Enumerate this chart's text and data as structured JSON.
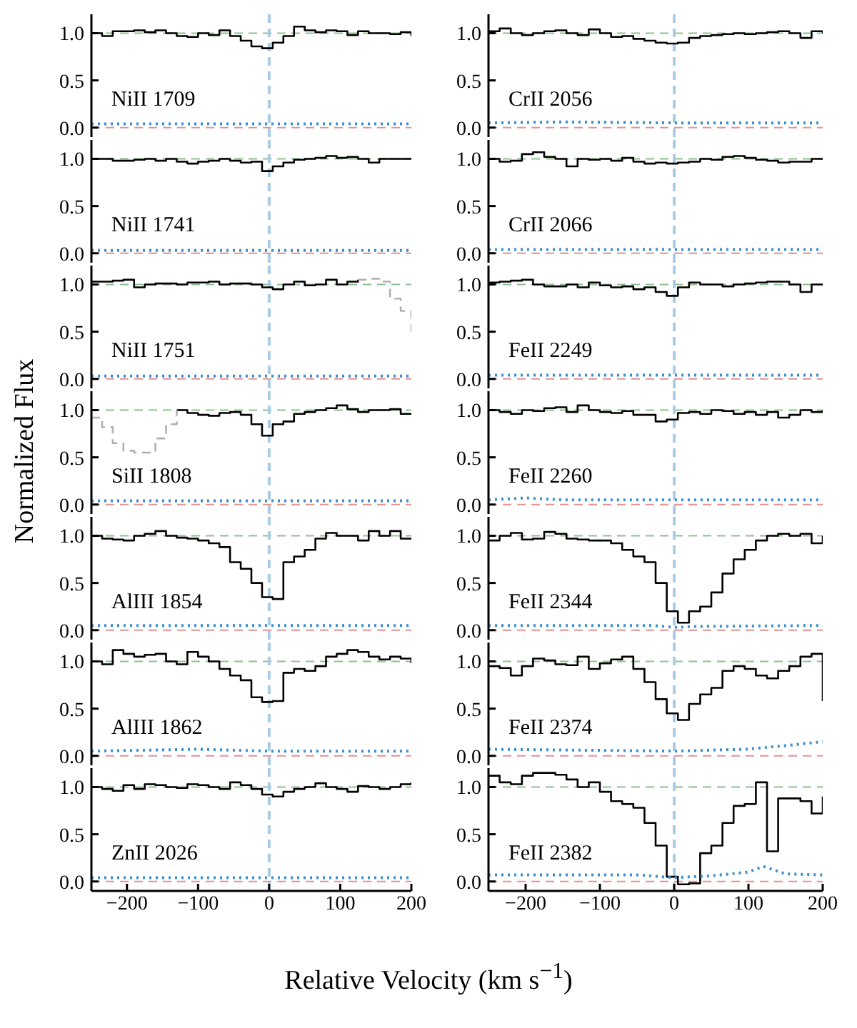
{
  "chart_data": [
    {
      "type": "step",
      "annotations": [
        "NiII 1709"
      ],
      "x": [
        -250,
        -235,
        -220,
        -205,
        -190,
        -175,
        -160,
        -145,
        -130,
        -115,
        -100,
        -85,
        -70,
        -55,
        -40,
        -25,
        -10,
        5,
        20,
        35,
        50,
        65,
        80,
        95,
        110,
        125,
        140,
        155,
        170,
        185,
        200
      ],
      "series": [
        {
          "color": "#000000",
          "values": [
            1.0,
            0.97,
            1.02,
            1.02,
            1.03,
            1.01,
            1.03,
            1.0,
            0.97,
            0.96,
            1.0,
            0.98,
            1.03,
            0.97,
            0.92,
            0.86,
            0.84,
            0.9,
            0.97,
            1.07,
            1.03,
            1.01,
            1.03,
            1.02,
            0.98,
            1.02,
            1.0,
            1.0,
            0.99,
            1.01,
            0.97
          ]
        },
        {
          "type": "line",
          "line_style": "dotted",
          "color": "#3a8fd0",
          "x": [
            -250,
            200
          ],
          "values": [
            0.04,
            0.04
          ]
        }
      ],
      "xlim": [
        -250,
        200
      ],
      "ylim": [
        -0.1,
        1.2
      ],
      "xticks": [
        -200,
        -100,
        0,
        100,
        200
      ],
      "yticks": [
        {
          "value": 0,
          "label": "0.0"
        },
        {
          "value": 0.5,
          "label": "0.5"
        },
        {
          "value": 1,
          "label": "1.0"
        }
      ],
      "tick_labels": "y",
      "ref_lines": [
        {
          "axis": "y",
          "value": 1,
          "color": "#8fc08f",
          "line_style": "dashed"
        },
        {
          "axis": "y",
          "value": 0,
          "color": "#e89090",
          "line_style": "dashed"
        },
        {
          "axis": "x",
          "value": 0,
          "color": "#a9cce6",
          "line_style": "dashed"
        }
      ]
    },
    {
      "type": "step",
      "annotations": [
        "NiII 1741"
      ],
      "x": [
        -250,
        -235,
        -220,
        -205,
        -190,
        -175,
        -160,
        -145,
        -130,
        -115,
        -100,
        -85,
        -70,
        -55,
        -40,
        -25,
        -10,
        5,
        20,
        35,
        50,
        65,
        80,
        95,
        110,
        125,
        140,
        155,
        170,
        185,
        200
      ],
      "series": [
        {
          "color": "#000000",
          "values": [
            1.0,
            1.0,
            0.98,
            0.98,
            0.99,
            1.0,
            0.98,
            1.0,
            0.97,
            0.95,
            0.97,
            0.98,
            1.0,
            0.98,
            0.96,
            0.97,
            0.87,
            0.92,
            0.96,
            0.99,
            1.0,
            1.01,
            1.03,
            1.01,
            1.02,
            1.0,
            0.96,
            1.0,
            1.0,
            1.0,
            0.99
          ]
        },
        {
          "type": "line",
          "line_style": "dotted",
          "color": "#3a8fd0",
          "x": [
            -250,
            200
          ],
          "values": [
            0.03,
            0.03
          ]
        }
      ],
      "xlim": [
        -250,
        200
      ],
      "ylim": [
        -0.1,
        1.2
      ],
      "xticks": [
        -200,
        -100,
        0,
        100,
        200
      ],
      "yticks": [
        {
          "value": 0,
          "label": "0.0"
        },
        {
          "value": 0.5,
          "label": "0.5"
        },
        {
          "value": 1,
          "label": "1.0"
        }
      ],
      "tick_labels": "y",
      "ref_lines": [
        {
          "axis": "y",
          "value": 1,
          "color": "#8fc08f",
          "line_style": "dashed"
        },
        {
          "axis": "y",
          "value": 0,
          "color": "#e89090",
          "line_style": "dashed"
        },
        {
          "axis": "x",
          "value": 0,
          "color": "#a9cce6",
          "line_style": "dashed"
        }
      ]
    },
    {
      "type": "step",
      "annotations": [
        "NiII 1751"
      ],
      "x": [
        -250,
        -235,
        -220,
        -205,
        -190,
        -175,
        -160,
        -145,
        -130,
        -115,
        -100,
        -85,
        -70,
        -55,
        -40,
        -25,
        -10,
        5,
        20,
        35,
        50,
        65,
        80,
        95,
        110,
        125,
        140,
        155,
        170,
        185,
        200
      ],
      "series": [
        {
          "color": "#000000",
          "values": [
            1.03,
            1.03,
            1.04,
            1.05,
            0.97,
            1.0,
            1.01,
            1.01,
            1.0,
            1.02,
            1.02,
            1.03,
            1.0,
            1.01,
            1.01,
            1.0,
            0.97,
            0.95,
            1.0,
            1.03,
            0.99,
            1.0,
            1.05,
            1.0,
            1.03,
            1.05,
            null,
            null,
            null,
            null,
            null
          ]
        },
        {
          "color": "#b0b0b0",
          "line_style": "dashed",
          "values": [
            null,
            null,
            null,
            null,
            null,
            null,
            null,
            null,
            null,
            null,
            null,
            null,
            null,
            null,
            null,
            null,
            null,
            null,
            null,
            null,
            null,
            null,
            null,
            null,
            null,
            1.05,
            1.06,
            1.03,
            0.85,
            0.72,
            0.5
          ]
        },
        {
          "type": "line",
          "line_style": "dotted",
          "color": "#3a8fd0",
          "x": [
            -250,
            200
          ],
          "values": [
            0.03,
            0.03
          ]
        }
      ],
      "xlim": [
        -250,
        200
      ],
      "ylim": [
        -0.1,
        1.2
      ],
      "xticks": [
        -200,
        -100,
        0,
        100,
        200
      ],
      "yticks": [
        {
          "value": 0,
          "label": "0.0"
        },
        {
          "value": 0.5,
          "label": "0.5"
        },
        {
          "value": 1,
          "label": "1.0"
        }
      ],
      "tick_labels": "y",
      "ref_lines": [
        {
          "axis": "y",
          "value": 1,
          "color": "#8fc08f",
          "line_style": "dashed"
        },
        {
          "axis": "y",
          "value": 0,
          "color": "#e89090",
          "line_style": "dashed"
        },
        {
          "axis": "x",
          "value": 0,
          "color": "#a9cce6",
          "line_style": "dashed"
        }
      ]
    },
    {
      "type": "step",
      "ylabel": "Normalized Flux",
      "annotations": [
        "SiII 1808"
      ],
      "x": [
        -250,
        -235,
        -220,
        -205,
        -190,
        -175,
        -160,
        -145,
        -130,
        -115,
        -100,
        -85,
        -70,
        -55,
        -40,
        -25,
        -10,
        5,
        20,
        35,
        50,
        65,
        80,
        95,
        110,
        125,
        140,
        155,
        170,
        185,
        200
      ],
      "series": [
        {
          "color": "#000000",
          "values": [
            null,
            null,
            null,
            null,
            null,
            null,
            null,
            null,
            1.0,
            0.97,
            0.95,
            0.94,
            0.97,
            0.98,
            0.95,
            0.85,
            0.73,
            0.85,
            0.88,
            0.96,
            0.98,
            1.0,
            1.02,
            1.05,
            1.01,
            0.98,
            1.0,
            1.0,
            1.01,
            0.96,
            0.95
          ]
        },
        {
          "color": "#b0b0b0",
          "line_style": "dashed",
          "values": [
            0.92,
            0.82,
            0.65,
            0.57,
            0.55,
            0.55,
            0.7,
            0.85,
            1.0,
            null,
            null,
            null,
            null,
            null,
            null,
            null,
            null,
            null,
            null,
            null,
            null,
            null,
            null,
            null,
            null,
            null,
            null,
            null,
            null,
            null,
            null
          ]
        },
        {
          "type": "line",
          "line_style": "dotted",
          "color": "#3a8fd0",
          "x": [
            -250,
            200
          ],
          "values": [
            0.04,
            0.04
          ]
        }
      ],
      "xlim": [
        -250,
        200
      ],
      "ylim": [
        -0.1,
        1.2
      ],
      "xticks": [
        -200,
        -100,
        0,
        100,
        200
      ],
      "yticks": [
        {
          "value": 0,
          "label": "0.0"
        },
        {
          "value": 0.5,
          "label": "0.5"
        },
        {
          "value": 1,
          "label": "1.0"
        }
      ],
      "tick_labels": "y",
      "ref_lines": [
        {
          "axis": "y",
          "value": 1,
          "color": "#8fc08f",
          "line_style": "dashed"
        },
        {
          "axis": "y",
          "value": 0,
          "color": "#e89090",
          "line_style": "dashed"
        },
        {
          "axis": "x",
          "value": 0,
          "color": "#a9cce6",
          "line_style": "dashed"
        }
      ]
    },
    {
      "type": "step",
      "annotations": [
        "AlIII 1854"
      ],
      "x": [
        -250,
        -235,
        -220,
        -205,
        -190,
        -175,
        -160,
        -145,
        -130,
        -115,
        -100,
        -85,
        -70,
        -55,
        -40,
        -25,
        -10,
        5,
        20,
        35,
        50,
        65,
        80,
        95,
        110,
        125,
        140,
        155,
        170,
        185,
        200
      ],
      "series": [
        {
          "color": "#000000",
          "values": [
            1.0,
            0.97,
            0.96,
            0.95,
            1.0,
            1.02,
            1.05,
            1.0,
            0.98,
            0.97,
            0.95,
            0.92,
            0.88,
            0.72,
            0.65,
            0.5,
            0.35,
            0.33,
            0.72,
            0.78,
            0.85,
            0.97,
            1.03,
            1.0,
            1.0,
            0.95,
            1.05,
            1.0,
            1.05,
            0.97,
            0.98
          ]
        },
        {
          "type": "line",
          "line_style": "dotted",
          "color": "#3a8fd0",
          "x": [
            -250,
            200
          ],
          "values": [
            0.05,
            0.05
          ]
        }
      ],
      "xlim": [
        -250,
        200
      ],
      "ylim": [
        -0.1,
        1.2
      ],
      "xticks": [
        -200,
        -100,
        0,
        100,
        200
      ],
      "yticks": [
        {
          "value": 0,
          "label": "0.0"
        },
        {
          "value": 0.5,
          "label": "0.5"
        },
        {
          "value": 1,
          "label": "1.0"
        }
      ],
      "tick_labels": "y",
      "ref_lines": [
        {
          "axis": "y",
          "value": 1,
          "color": "#8fc08f",
          "line_style": "dashed"
        },
        {
          "axis": "y",
          "value": 0,
          "color": "#e89090",
          "line_style": "dashed"
        },
        {
          "axis": "x",
          "value": 0,
          "color": "#a9cce6",
          "line_style": "dashed"
        }
      ]
    },
    {
      "type": "step",
      "annotations": [
        "AlIII 1862"
      ],
      "x": [
        -250,
        -235,
        -220,
        -205,
        -190,
        -175,
        -160,
        -145,
        -130,
        -115,
        -100,
        -85,
        -70,
        -55,
        -40,
        -25,
        -10,
        5,
        20,
        35,
        50,
        65,
        80,
        95,
        110,
        125,
        140,
        155,
        170,
        185,
        200
      ],
      "series": [
        {
          "color": "#000000",
          "values": [
            1.0,
            0.97,
            1.12,
            1.08,
            1.05,
            1.07,
            1.08,
            1.0,
            0.97,
            1.1,
            1.05,
            1.0,
            0.92,
            0.85,
            0.8,
            0.62,
            0.57,
            0.58,
            0.88,
            0.92,
            0.9,
            0.95,
            1.05,
            1.08,
            1.12,
            1.1,
            1.05,
            1.02,
            1.05,
            1.03,
            0.98
          ]
        },
        {
          "type": "line",
          "line_style": "dotted",
          "color": "#3a8fd0",
          "x": [
            -250,
            -100,
            0,
            200
          ],
          "values": [
            0.05,
            0.07,
            0.05,
            0.05
          ]
        }
      ],
      "xlim": [
        -250,
        200
      ],
      "ylim": [
        -0.1,
        1.2
      ],
      "xticks": [
        -200,
        -100,
        0,
        100,
        200
      ],
      "yticks": [
        {
          "value": 0,
          "label": "0.0"
        },
        {
          "value": 0.5,
          "label": "0.5"
        },
        {
          "value": 1,
          "label": "1.0"
        }
      ],
      "tick_labels": "y",
      "ref_lines": [
        {
          "axis": "y",
          "value": 1,
          "color": "#8fc08f",
          "line_style": "dashed"
        },
        {
          "axis": "y",
          "value": 0,
          "color": "#e89090",
          "line_style": "dashed"
        },
        {
          "axis": "x",
          "value": 0,
          "color": "#a9cce6",
          "line_style": "dashed"
        }
      ]
    },
    {
      "type": "step",
      "annotations": [
        "ZnII 2026"
      ],
      "x": [
        -250,
        -235,
        -220,
        -205,
        -190,
        -175,
        -160,
        -145,
        -130,
        -115,
        -100,
        -85,
        -70,
        -55,
        -40,
        -25,
        -10,
        5,
        20,
        35,
        50,
        65,
        80,
        95,
        110,
        125,
        140,
        155,
        170,
        185,
        200
      ],
      "series": [
        {
          "color": "#000000",
          "values": [
            1.0,
            0.98,
            0.96,
            1.02,
            0.98,
            1.03,
            1.02,
            1.0,
            0.99,
            1.03,
            1.02,
            1.0,
            0.98,
            1.05,
            1.02,
            0.98,
            0.92,
            0.9,
            0.95,
            0.98,
            1.0,
            1.04,
            1.0,
            0.98,
            0.95,
            1.01,
            1.0,
            0.98,
            1.0,
            1.03,
            1.05
          ]
        },
        {
          "type": "line",
          "line_style": "dotted",
          "color": "#3a8fd0",
          "x": [
            -250,
            200
          ],
          "values": [
            0.04,
            0.04
          ]
        }
      ],
      "xlim": [
        -250,
        200
      ],
      "ylim": [
        -0.1,
        1.2
      ],
      "xticks": [
        -200,
        -100,
        0,
        100,
        200
      ],
      "yticks": [
        {
          "value": 0,
          "label": "0.0"
        },
        {
          "value": 0.5,
          "label": "0.5"
        },
        {
          "value": 1,
          "label": "1.0"
        }
      ],
      "ref_lines": [
        {
          "axis": "y",
          "value": 1,
          "color": "#8fc08f",
          "line_style": "dashed"
        },
        {
          "axis": "y",
          "value": 0,
          "color": "#e89090",
          "line_style": "dashed"
        },
        {
          "axis": "x",
          "value": 0,
          "color": "#a9cce6",
          "line_style": "dashed"
        }
      ]
    },
    {
      "type": "step",
      "annotations": [
        "CrII 2056"
      ],
      "x": [
        -250,
        -235,
        -220,
        -205,
        -190,
        -175,
        -160,
        -145,
        -130,
        -115,
        -100,
        -85,
        -70,
        -55,
        -40,
        -25,
        -10,
        5,
        20,
        35,
        50,
        65,
        80,
        95,
        110,
        125,
        140,
        155,
        170,
        185,
        200
      ],
      "series": [
        {
          "color": "#000000",
          "values": [
            1.02,
            1.05,
            1.0,
            0.98,
            1.0,
            1.02,
            1.03,
            1.0,
            0.98,
            1.04,
            1.0,
            0.96,
            0.97,
            0.94,
            0.92,
            0.9,
            0.89,
            0.9,
            0.95,
            0.97,
            0.98,
            0.99,
            1.0,
            0.99,
            1.0,
            1.01,
            1.02,
            1.0,
            0.95,
            1.02,
            1.0
          ]
        },
        {
          "type": "line",
          "line_style": "dotted",
          "color": "#3a8fd0",
          "x": [
            -250,
            -150,
            0,
            200
          ],
          "values": [
            0.05,
            0.06,
            0.05,
            0.05
          ]
        }
      ],
      "xlim": [
        -250,
        200
      ],
      "ylim": [
        -0.1,
        1.2
      ],
      "xticks": [
        -200,
        -100,
        0,
        100,
        200
      ],
      "yticks": [
        {
          "value": 0,
          "label": "0.0"
        },
        {
          "value": 0.5,
          "label": "0.5"
        },
        {
          "value": 1,
          "label": "1.0"
        }
      ],
      "tick_labels": "y",
      "ref_lines": [
        {
          "axis": "y",
          "value": 1,
          "color": "#8fc08f",
          "line_style": "dashed"
        },
        {
          "axis": "y",
          "value": 0,
          "color": "#e89090",
          "line_style": "dashed"
        },
        {
          "axis": "x",
          "value": 0,
          "color": "#a9cce6",
          "line_style": "dashed"
        }
      ]
    },
    {
      "type": "step",
      "annotations": [
        "CrII 2066"
      ],
      "x": [
        -250,
        -235,
        -220,
        -205,
        -190,
        -175,
        -160,
        -145,
        -130,
        -115,
        -100,
        -85,
        -70,
        -55,
        -40,
        -25,
        -10,
        5,
        20,
        35,
        50,
        65,
        80,
        95,
        110,
        125,
        140,
        155,
        170,
        185,
        200
      ],
      "series": [
        {
          "color": "#000000",
          "values": [
            1.0,
            0.97,
            0.98,
            1.05,
            1.07,
            1.02,
            1.0,
            0.92,
            1.0,
            0.99,
            1.0,
            0.98,
            1.01,
            0.97,
            0.95,
            0.96,
            0.95,
            0.96,
            0.97,
            1.0,
            0.99,
            1.02,
            1.03,
            1.01,
            0.99,
            0.98,
            0.96,
            0.97,
            0.97,
            1.0,
            1.0
          ]
        },
        {
          "type": "line",
          "line_style": "dotted",
          "color": "#3a8fd0",
          "x": [
            -250,
            200
          ],
          "values": [
            0.04,
            0.04
          ]
        }
      ],
      "xlim": [
        -250,
        200
      ],
      "ylim": [
        -0.1,
        1.2
      ],
      "xticks": [
        -200,
        -100,
        0,
        100,
        200
      ],
      "yticks": [
        {
          "value": 0,
          "label": "0.0"
        },
        {
          "value": 0.5,
          "label": "0.5"
        },
        {
          "value": 1,
          "label": "1.0"
        }
      ],
      "tick_labels": "y",
      "ref_lines": [
        {
          "axis": "y",
          "value": 1,
          "color": "#8fc08f",
          "line_style": "dashed"
        },
        {
          "axis": "y",
          "value": 0,
          "color": "#e89090",
          "line_style": "dashed"
        },
        {
          "axis": "x",
          "value": 0,
          "color": "#a9cce6",
          "line_style": "dashed"
        }
      ]
    },
    {
      "type": "step",
      "annotations": [
        "FeII 2249"
      ],
      "x": [
        -250,
        -235,
        -220,
        -205,
        -190,
        -175,
        -160,
        -145,
        -130,
        -115,
        -100,
        -85,
        -70,
        -55,
        -40,
        -25,
        -10,
        5,
        20,
        35,
        50,
        65,
        80,
        95,
        110,
        125,
        140,
        155,
        170,
        185,
        200
      ],
      "series": [
        {
          "color": "#000000",
          "values": [
            1.02,
            1.03,
            1.04,
            1.05,
            1.0,
            0.98,
            0.98,
            1.0,
            0.97,
            1.02,
            0.99,
            0.97,
            0.98,
            0.95,
            0.97,
            0.92,
            0.88,
            0.97,
            1.02,
            1.0,
            1.0,
            0.98,
            1.0,
            1.01,
            1.02,
            1.03,
            1.03,
            1.0,
            0.92,
            1.0,
            1.0
          ]
        },
        {
          "type": "line",
          "line_style": "dotted",
          "color": "#3a8fd0",
          "x": [
            -250,
            200
          ],
          "values": [
            0.04,
            0.04
          ]
        }
      ],
      "xlim": [
        -250,
        200
      ],
      "ylim": [
        -0.1,
        1.2
      ],
      "xticks": [
        -200,
        -100,
        0,
        100,
        200
      ],
      "yticks": [
        {
          "value": 0,
          "label": "0.0"
        },
        {
          "value": 0.5,
          "label": "0.5"
        },
        {
          "value": 1,
          "label": "1.0"
        }
      ],
      "tick_labels": "y",
      "ref_lines": [
        {
          "axis": "y",
          "value": 1,
          "color": "#8fc08f",
          "line_style": "dashed"
        },
        {
          "axis": "y",
          "value": 0,
          "color": "#e89090",
          "line_style": "dashed"
        },
        {
          "axis": "x",
          "value": 0,
          "color": "#a9cce6",
          "line_style": "dashed"
        }
      ]
    },
    {
      "type": "step",
      "annotations": [
        "FeII 2260"
      ],
      "x": [
        -250,
        -235,
        -220,
        -205,
        -190,
        -175,
        -160,
        -145,
        -130,
        -115,
        -100,
        -85,
        -70,
        -55,
        -40,
        -25,
        -10,
        5,
        20,
        35,
        50,
        65,
        80,
        95,
        110,
        125,
        140,
        155,
        170,
        185,
        200
      ],
      "series": [
        {
          "color": "#000000",
          "values": [
            1.0,
            0.98,
            0.96,
            1.0,
            0.99,
            1.02,
            1.03,
            0.98,
            1.05,
            1.0,
            0.98,
            0.97,
            0.99,
            0.95,
            0.95,
            0.88,
            0.9,
            0.97,
            0.98,
            0.96,
            1.0,
            0.99,
            0.96,
            0.98,
            0.95,
            0.98,
            0.92,
            0.95,
            1.0,
            0.98,
            1.0
          ]
        },
        {
          "type": "line",
          "line_style": "dotted",
          "color": "#3a8fd0",
          "x": [
            -250,
            -200,
            -150,
            200
          ],
          "values": [
            0.05,
            0.07,
            0.05,
            0.05
          ]
        }
      ],
      "xlim": [
        -250,
        200
      ],
      "ylim": [
        -0.1,
        1.2
      ],
      "xticks": [
        -200,
        -100,
        0,
        100,
        200
      ],
      "yticks": [
        {
          "value": 0,
          "label": "0.0"
        },
        {
          "value": 0.5,
          "label": "0.5"
        },
        {
          "value": 1,
          "label": "1.0"
        }
      ],
      "tick_labels": "y",
      "ref_lines": [
        {
          "axis": "y",
          "value": 1,
          "color": "#8fc08f",
          "line_style": "dashed"
        },
        {
          "axis": "y",
          "value": 0,
          "color": "#e89090",
          "line_style": "dashed"
        },
        {
          "axis": "x",
          "value": 0,
          "color": "#a9cce6",
          "line_style": "dashed"
        }
      ]
    },
    {
      "type": "step",
      "annotations": [
        "FeII 2344"
      ],
      "x": [
        -250,
        -235,
        -220,
        -205,
        -190,
        -175,
        -160,
        -145,
        -130,
        -115,
        -100,
        -85,
        -70,
        -55,
        -40,
        -25,
        -10,
        5,
        20,
        35,
        50,
        65,
        80,
        95,
        110,
        125,
        140,
        155,
        170,
        185,
        200
      ],
      "series": [
        {
          "color": "#000000",
          "values": [
            0.95,
            1.0,
            1.03,
            0.96,
            0.97,
            1.04,
            1.02,
            0.97,
            0.96,
            0.95,
            0.95,
            0.92,
            0.85,
            0.78,
            0.72,
            0.5,
            0.2,
            0.08,
            0.2,
            0.25,
            0.4,
            0.6,
            0.75,
            0.85,
            0.95,
            1.0,
            1.02,
            1.0,
            1.02,
            0.92,
            1.0
          ]
        },
        {
          "type": "line",
          "line_style": "dotted",
          "color": "#3a8fd0",
          "x": [
            -250,
            -30,
            0,
            30,
            200
          ],
          "values": [
            0.05,
            0.05,
            0.03,
            0.04,
            0.05
          ]
        }
      ],
      "xlim": [
        -250,
        200
      ],
      "ylim": [
        -0.1,
        1.2
      ],
      "xticks": [
        -200,
        -100,
        0,
        100,
        200
      ],
      "yticks": [
        {
          "value": 0,
          "label": "0.0"
        },
        {
          "value": 0.5,
          "label": "0.5"
        },
        {
          "value": 1,
          "label": "1.0"
        }
      ],
      "tick_labels": "y",
      "ref_lines": [
        {
          "axis": "y",
          "value": 1,
          "color": "#8fc08f",
          "line_style": "dashed"
        },
        {
          "axis": "y",
          "value": 0,
          "color": "#e89090",
          "line_style": "dashed"
        },
        {
          "axis": "x",
          "value": 0,
          "color": "#a9cce6",
          "line_style": "dashed"
        }
      ]
    },
    {
      "type": "step",
      "annotations": [
        "FeII 2374"
      ],
      "x": [
        -250,
        -235,
        -220,
        -205,
        -190,
        -175,
        -160,
        -145,
        -130,
        -115,
        -100,
        -85,
        -70,
        -55,
        -40,
        -25,
        -10,
        5,
        20,
        35,
        50,
        65,
        80,
        95,
        110,
        125,
        140,
        155,
        170,
        185,
        200
      ],
      "series": [
        {
          "color": "#000000",
          "values": [
            0.95,
            0.93,
            0.85,
            0.95,
            1.03,
            1.01,
            0.97,
            0.96,
            1.05,
            0.92,
            0.98,
            1.02,
            1.05,
            0.92,
            0.78,
            0.6,
            0.45,
            0.38,
            0.55,
            0.65,
            0.72,
            0.9,
            0.95,
            0.92,
            0.85,
            0.82,
            0.9,
            0.95,
            1.05,
            1.08,
            0.58
          ]
        },
        {
          "type": "line",
          "line_style": "dotted",
          "color": "#3a8fd0",
          "x": [
            -250,
            0,
            95,
            140,
            200
          ],
          "values": [
            0.07,
            0.05,
            0.07,
            0.1,
            0.15
          ]
        }
      ],
      "xlim": [
        -250,
        200
      ],
      "ylim": [
        -0.1,
        1.2
      ],
      "xticks": [
        -200,
        -100,
        0,
        100,
        200
      ],
      "yticks": [
        {
          "value": 0,
          "label": "0.0"
        },
        {
          "value": 0.5,
          "label": "0.5"
        },
        {
          "value": 1,
          "label": "1.0"
        }
      ],
      "tick_labels": "y",
      "ref_lines": [
        {
          "axis": "y",
          "value": 1,
          "color": "#8fc08f",
          "line_style": "dashed"
        },
        {
          "axis": "y",
          "value": 0,
          "color": "#e89090",
          "line_style": "dashed"
        },
        {
          "axis": "x",
          "value": 0,
          "color": "#a9cce6",
          "line_style": "dashed"
        }
      ]
    },
    {
      "type": "step",
      "xlabel": "Relative Velocity  (km s$^{−1}$)",
      "annotations": [
        "FeII 2382"
      ],
      "x": [
        -250,
        -235,
        -220,
        -205,
        -190,
        -175,
        -160,
        -145,
        -130,
        -115,
        -100,
        -85,
        -70,
        -55,
        -40,
        -25,
        -10,
        5,
        20,
        35,
        50,
        65,
        80,
        95,
        110,
        125,
        140,
        155,
        170,
        185,
        200
      ],
      "series": [
        {
          "color": "#000000",
          "values": [
            1.12,
            1.05,
            1.03,
            1.12,
            1.15,
            1.15,
            1.13,
            1.08,
            1.0,
            1.05,
            0.95,
            0.85,
            0.82,
            0.78,
            0.62,
            0.38,
            0.05,
            -0.03,
            -0.02,
            0.3,
            0.38,
            0.62,
            0.8,
            0.82,
            1.05,
            0.32,
            0.88,
            0.88,
            0.85,
            0.72,
            0.9
          ]
        },
        {
          "type": "line",
          "line_style": "dotted",
          "color": "#3a8fd0",
          "x": [
            -250,
            -50,
            0,
            50,
            100,
            120,
            150,
            200
          ],
          "values": [
            0.07,
            0.07,
            0.04,
            0.06,
            0.1,
            0.16,
            0.08,
            0.07
          ]
        }
      ],
      "xlim": [
        -250,
        200
      ],
      "ylim": [
        -0.1,
        1.2
      ],
      "xticks": [
        -200,
        -100,
        0,
        100,
        200
      ],
      "yticks": [
        {
          "value": 0,
          "label": "0.0"
        },
        {
          "value": 0.5,
          "label": "0.5"
        },
        {
          "value": 1,
          "label": "1.0"
        }
      ],
      "ref_lines": [
        {
          "axis": "y",
          "value": 1,
          "color": "#8fc08f",
          "line_style": "dashed"
        },
        {
          "axis": "y",
          "value": 0,
          "color": "#e89090",
          "line_style": "dashed"
        },
        {
          "axis": "x",
          "value": 0,
          "color": "#a9cce6",
          "line_style": "dashed"
        }
      ]
    }
  ]
}
